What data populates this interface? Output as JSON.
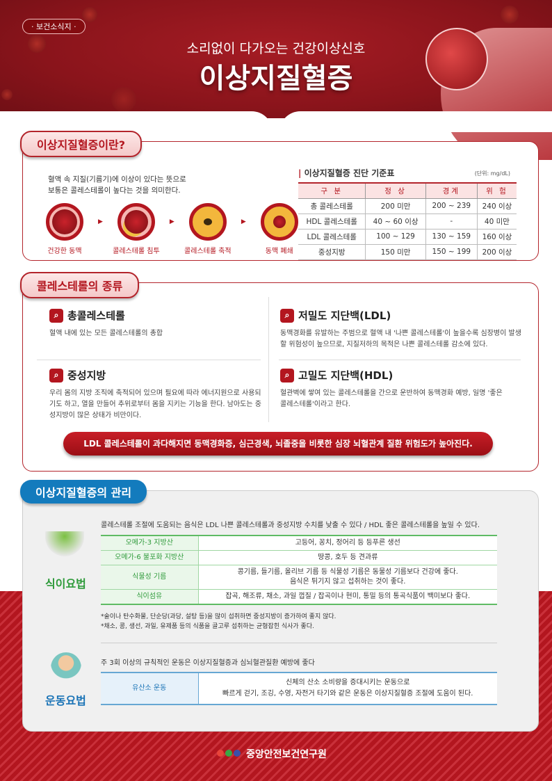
{
  "header": {
    "badge": "· 보건소식지 ·",
    "subtitle": "소리없이 다가오는 건강이상신호",
    "title": "이상지질혈증"
  },
  "about": {
    "tab": "이상지질혈증이란?",
    "desc": [
      "혈액 속 지질(기름기)에 이상이 있다는 뜻으로",
      "보통은 콜레스테롤이 높다는 것을 의미한다."
    ],
    "stages": [
      "건강한 동맥",
      "콜레스테롤 침투",
      "콜레스테롤 축적",
      "동맥 폐쇄"
    ],
    "table_title": "이상지질혈증 진단 기준표",
    "unit": "(단위: mg/dL)",
    "columns": [
      "구 분",
      "정 상",
      "경계",
      "위 험"
    ],
    "rows": [
      [
        "총 콜레스테롤",
        "200 미만",
        "200 ~ 239",
        "240 이상"
      ],
      [
        "HDL 콜레스테롤",
        "40 ~ 60 이상",
        "-",
        "40 미만"
      ],
      [
        "LDL 콜레스테롤",
        "100 ~ 129",
        "130 ~ 159",
        "160 이상"
      ],
      [
        "중성지방",
        "150 미만",
        "150 ~ 199",
        "200 이상"
      ]
    ]
  },
  "types": {
    "tab": "콜레스테롤의 종류",
    "items": [
      {
        "title": "총콜레스테롤",
        "desc": "혈액 내에 있는 모든 콜레스테롤의 총합"
      },
      {
        "title": "저밀도 지단백(LDL)",
        "desc": "동맥경화를 유발하는 주범으로 혈액 내 '나쁜 콜레스테롤'이 높을수록 심장병이 발생할 위험성이 높으므로, 지질저하의 목적은 나쁜 콜레스테롤 감소에 있다."
      },
      {
        "title": "중성지방",
        "desc": "우리 몸의 지방 조직에 축적되어 있으며 필요에 따라 에너지원으로 사용되기도 하고, 열을 만들어 추위로부터 몸을 지키는 기능을 한다. 남아도는 중성지방이 많은 상태가 비만이다."
      },
      {
        "title": "고밀도 지단백(HDL)",
        "desc": "혈관벽에 쌓여 있는 콜레스테롤을 간으로 운반하여 동맥경화 예방, 일명 '좋은 콜레스테롤'이라고 한다."
      }
    ],
    "warning": "LDL 콜레스테롤이 과다해지면 동맥경화증, 심근경색, 뇌졸중을 비롯한 심장 뇌혈관계 질환 위험도가 높아진다."
  },
  "management": {
    "tab": "이상지질혈증의 관리",
    "diet": {
      "label": "식이요법",
      "intro": "콜레스테롤 조절에 도움되는 음식은 LDL 나쁜 콜레스테롤과 중성지방 수치를 낮출 수 있다 / HDL 좋은 콜레스테롤을 높일 수 있다.",
      "rows": [
        [
          "오메가-3 지방산",
          "고등어, 꽁치, 정어리 등 등푸른 생선"
        ],
        [
          "오메가-6 불포화 지방산",
          "땅콩, 호두 등 견과류"
        ],
        [
          "식물성 기름",
          "콩기름, 들기름, 올리브 기름 등 식물성 기름은 동물성 기름보다 건강에 좋다.",
          "음식은 튀기지 않고 섭취하는 것이 좋다."
        ],
        [
          "식이섬유",
          "잡곡, 해조류, 채소, 과일 껍질 / 잡곡이나 현미, 통밀 등의 통곡식품이 백미보다 좋다."
        ]
      ],
      "notes": [
        "*술이나 탄수화물, 단순당(과당, 설탕 등)을 많이 섭취하면 중성지방이 증가하여 좋지 않다.",
        "*채소, 콩, 생선, 과일, 유제품 등의 식품을 골고루 섭취하는 균형잡힌 식사가 좋다."
      ]
    },
    "exercise": {
      "label": "운동요법",
      "intro": "주 3회 이상의 규칙적인 운동은 이상지질혈증과 심뇌혈관질환 예방에 좋다",
      "key": "유산소 운동",
      "desc": [
        "신체의 산소 소비량을 증대시키는 운동으로",
        "빠르게 걷기, 조깅, 수영, 자전거 타기와 같은 운동은 이상지질혈증 조절에 도움이 된다."
      ]
    }
  },
  "footer": {
    "org": "중앙안전보건연구원"
  },
  "colors": {
    "brand_red": "#b3161f",
    "diet_green": "#2e9a3a",
    "exercise_blue": "#1a73b6"
  }
}
